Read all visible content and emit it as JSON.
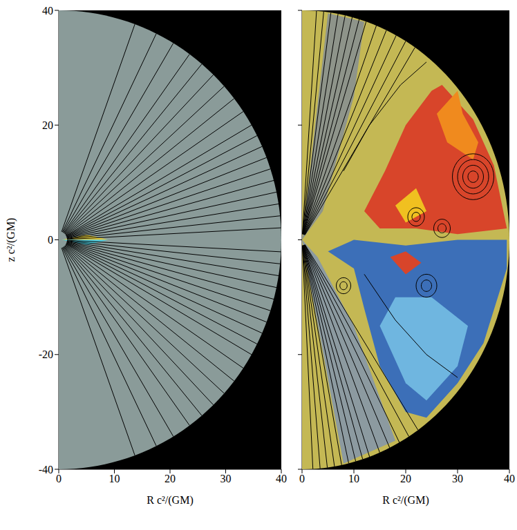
{
  "chart_data": [
    {
      "type": "field_map",
      "x_label": "R c²/(GM)",
      "y_label": "z c²/(GM)",
      "xlim": [
        0,
        40
      ],
      "ylim": [
        -40,
        40
      ],
      "xticks": [
        0,
        10,
        20,
        30,
        40
      ],
      "yticks": [
        -40,
        -20,
        0,
        20,
        40
      ],
      "domain_radius": 40,
      "color": "#8a9b99",
      "regions": [
        {
          "color": "#e8d040",
          "points": [
            [
              0.5,
              0
            ],
            [
              5,
              0.9
            ],
            [
              9,
              0
            ]
          ]
        },
        {
          "color": "#50c8d8",
          "points": [
            [
              0.5,
              0
            ],
            [
              5,
              -0.9
            ],
            [
              9,
              0
            ]
          ]
        }
      ],
      "field_line_r_inner": 1.5,
      "field_line_angles": [
        20,
        26,
        31,
        36,
        40,
        44,
        48,
        52,
        56,
        60,
        63,
        66,
        69,
        72,
        75,
        78,
        81,
        84,
        87,
        93,
        96,
        99,
        102,
        105,
        108,
        111,
        114,
        117,
        120,
        124,
        128,
        132,
        136,
        140,
        144,
        149,
        154,
        160
      ],
      "loops": [],
      "curves": []
    },
    {
      "type": "field_map",
      "x_label": "R c²/(GM)",
      "xlim": [
        0,
        40
      ],
      "ylim": [
        -40,
        40
      ],
      "xticks": [
        0,
        10,
        20,
        30,
        40
      ],
      "yticks": [
        -40,
        -20,
        0,
        20,
        40
      ],
      "tick_labels": "x",
      "domain_radius": 40,
      "color": "#c4b854",
      "regions": [
        {
          "color": "#8e948a",
          "points": [
            [
              0,
              0
            ],
            [
              5,
              39.5
            ],
            [
              12,
              38
            ],
            [
              10,
              25
            ],
            [
              4,
              5
            ]
          ]
        },
        {
          "color": "#8c9aa0",
          "points": [
            [
              0,
              0
            ],
            [
              8,
              -39
            ],
            [
              18,
              -35
            ],
            [
              10,
              -15
            ],
            [
              3,
              -3
            ]
          ]
        },
        {
          "color": "#d8452a",
          "points": [
            [
              12,
              5
            ],
            [
              16,
              12
            ],
            [
              20,
              20
            ],
            [
              25,
              26
            ],
            [
              27,
              27
            ],
            [
              33,
              21
            ],
            [
              37,
              13
            ],
            [
              39.5,
              2
            ],
            [
              30,
              1
            ],
            [
              22,
              2
            ],
            [
              15,
              2
            ]
          ]
        },
        {
          "color": "#f08a1e",
          "points": [
            [
              26,
              22
            ],
            [
              30,
              26
            ],
            [
              31,
              22
            ],
            [
              34,
              17
            ],
            [
              33,
              14
            ],
            [
              28,
              17
            ]
          ]
        },
        {
          "color": "#f0c020",
          "points": [
            [
              18,
              6
            ],
            [
              22,
              9
            ],
            [
              24,
              5
            ],
            [
              20,
              3
            ]
          ]
        },
        {
          "color": "#3c6fb8",
          "points": [
            [
              5,
              -2
            ],
            [
              10,
              -5
            ],
            [
              12,
              -12
            ],
            [
              15,
              -22
            ],
            [
              20,
              -30
            ],
            [
              24,
              -31
            ],
            [
              30,
              -25
            ],
            [
              35,
              -18
            ],
            [
              39.5,
              -5
            ],
            [
              39.5,
              0
            ],
            [
              30,
              0
            ],
            [
              20,
              -1
            ],
            [
              10,
              0
            ]
          ]
        },
        {
          "color": "#6fb6e0",
          "points": [
            [
              15,
              -15
            ],
            [
              20,
              -25
            ],
            [
              24,
              -28
            ],
            [
              30,
              -22
            ],
            [
              32,
              -15
            ],
            [
              25,
              -10
            ],
            [
              18,
              -10
            ]
          ]
        },
        {
          "color": "#d8452a",
          "points": [
            [
              17,
              -3
            ],
            [
              20,
              -6
            ],
            [
              23,
              -4
            ],
            [
              20,
              -2
            ]
          ]
        }
      ],
      "field_line_r_inner": 1,
      "field_line_angles": [
        4,
        6,
        8,
        10,
        12,
        14,
        16,
        18,
        21,
        24,
        27,
        30,
        33,
        146,
        149,
        152,
        155,
        158,
        161,
        163,
        165,
        167,
        169,
        171,
        173,
        175,
        177
      ],
      "loops": [
        {
          "R": 33,
          "z": 11,
          "radii": [
            1,
            2,
            3,
            4
          ]
        },
        {
          "R": 22,
          "z": 4,
          "radii": [
            0.8,
            1.6
          ]
        },
        {
          "R": 27,
          "z": 2,
          "radii": [
            0.8,
            1.6
          ]
        },
        {
          "R": 24,
          "z": -8,
          "radii": [
            1,
            2
          ]
        },
        {
          "R": 8,
          "z": -8,
          "radii": [
            0.7,
            1.4
          ]
        }
      ],
      "curves": [
        [
          [
            8,
            12
          ],
          [
            13,
            20
          ],
          [
            19,
            27
          ],
          [
            24,
            31
          ]
        ],
        [
          [
            12,
            -6
          ],
          [
            18,
            -14
          ],
          [
            24,
            -20
          ],
          [
            30,
            -24
          ]
        ]
      ]
    }
  ]
}
